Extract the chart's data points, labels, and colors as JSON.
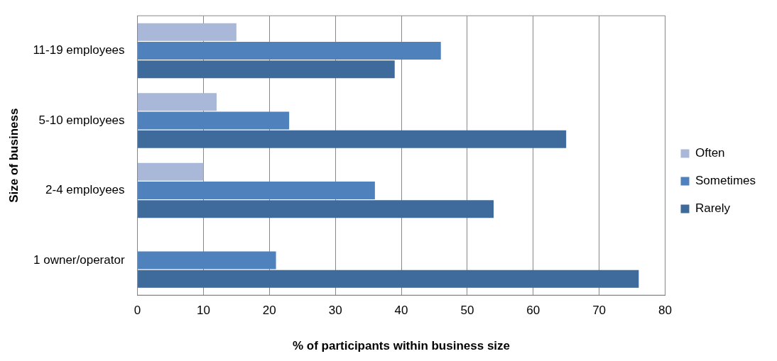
{
  "chart_data": {
    "type": "bar",
    "orientation": "horizontal",
    "xlabel": "% of participants within business size",
    "ylabel": "Size of business",
    "categories": [
      "11-19 employees",
      "5-10 employees",
      "2-4 employees",
      "1 owner/operator"
    ],
    "series": [
      {
        "name": "Often",
        "color": "#a9b8d8",
        "values": [
          15,
          12,
          10,
          null
        ]
      },
      {
        "name": "Sometimes",
        "color": "#4f81bd",
        "values": [
          46,
          23,
          36,
          21
        ]
      },
      {
        "name": "Rarely",
        "color": "#3f6a9c",
        "values": [
          39,
          65,
          54,
          76
        ]
      }
    ],
    "xlim": [
      0,
      80
    ],
    "xticks": [
      0,
      10,
      20,
      30,
      40,
      50,
      60,
      70,
      80
    ],
    "grid": "x",
    "legend": "right"
  }
}
